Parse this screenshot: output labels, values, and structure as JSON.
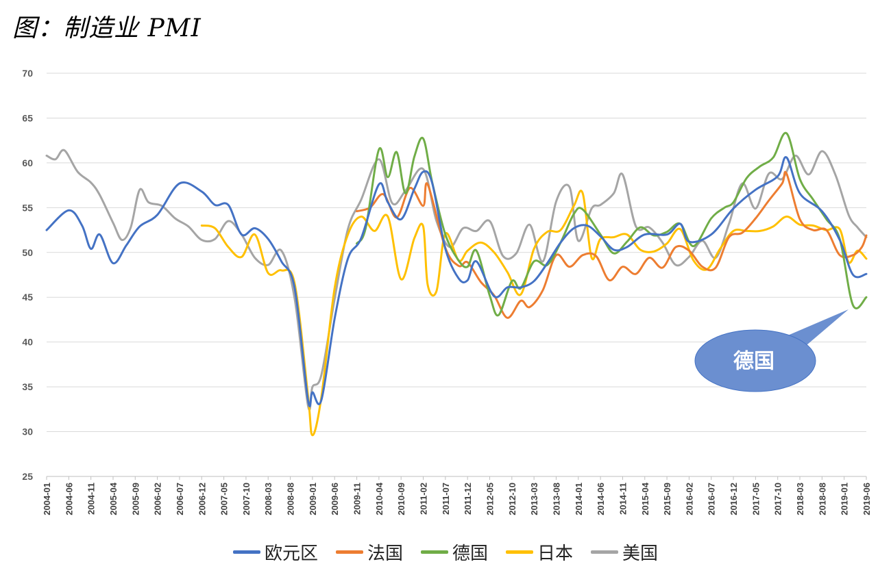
{
  "title": "图：制造业 PMI",
  "chart_data": {
    "type": "line",
    "title": "图：制造业 PMI",
    "ylim": [
      25,
      70
    ],
    "yticks": [
      25,
      30,
      35,
      40,
      45,
      50,
      55,
      60,
      65,
      70
    ],
    "grid": "horizontal",
    "legend_position": "bottom",
    "xtick_labels": [
      "2004-01",
      "2004-06",
      "2004-11",
      "2005-04",
      "2005-09",
      "2006-02",
      "2006-07",
      "2006-12",
      "2007-05",
      "2007-10",
      "2008-03",
      "2008-08",
      "2009-01",
      "2009-06",
      "2009-11",
      "2010-04",
      "2010-09",
      "2011-02",
      "2011-07",
      "2011-12",
      "2012-05",
      "2012-10",
      "2013-03",
      "2013-08",
      "2014-01",
      "2014-06",
      "2014-11",
      "2015-04",
      "2015-09",
      "2016-02",
      "2016-07",
      "2016-12",
      "2017-05",
      "2017-10",
      "2018-03",
      "2018-08",
      "2019-01",
      "2019-06"
    ],
    "series": [
      {
        "name": "欧元区",
        "color": "#4472C4",
        "start": "2004-01",
        "knots": [
          [
            "2004-01",
            52.5
          ],
          [
            "2004-06",
            54.7
          ],
          [
            "2004-09",
            53.0
          ],
          [
            "2004-11",
            50.4
          ],
          [
            "2005-01",
            52.0
          ],
          [
            "2005-04",
            48.8
          ],
          [
            "2005-07",
            50.8
          ],
          [
            "2005-10",
            52.9
          ],
          [
            "2006-02",
            54.2
          ],
          [
            "2006-07",
            57.7
          ],
          [
            "2006-12",
            56.8
          ],
          [
            "2007-03",
            55.3
          ],
          [
            "2007-06",
            55.3
          ],
          [
            "2007-09",
            52.0
          ],
          [
            "2007-12",
            52.7
          ],
          [
            "2008-03",
            51.5
          ],
          [
            "2008-06",
            49.0
          ],
          [
            "2008-09",
            46.0
          ],
          [
            "2008-12",
            33.5
          ],
          [
            "2009-01",
            34.4
          ],
          [
            "2009-03",
            33.5
          ],
          [
            "2009-06",
            42.6
          ],
          [
            "2009-09",
            49.3
          ],
          [
            "2009-12",
            51.6
          ],
          [
            "2010-04",
            57.6
          ],
          [
            "2010-06",
            55.6
          ],
          [
            "2010-09",
            53.7
          ],
          [
            "2010-12",
            57.1
          ],
          [
            "2011-02",
            59.0
          ],
          [
            "2011-04",
            57.8
          ],
          [
            "2011-07",
            50.4
          ],
          [
            "2011-10",
            47.1
          ],
          [
            "2011-12",
            46.9
          ],
          [
            "2012-02",
            49.0
          ],
          [
            "2012-06",
            45.1
          ],
          [
            "2012-09",
            46.1
          ],
          [
            "2012-12",
            46.1
          ],
          [
            "2013-03",
            46.8
          ],
          [
            "2013-06",
            48.8
          ],
          [
            "2013-09",
            51.1
          ],
          [
            "2013-12",
            52.7
          ],
          [
            "2014-03",
            53.0
          ],
          [
            "2014-06",
            51.8
          ],
          [
            "2014-09",
            50.3
          ],
          [
            "2014-12",
            50.6
          ],
          [
            "2015-04",
            52.0
          ],
          [
            "2015-09",
            52.0
          ],
          [
            "2015-12",
            53.2
          ],
          [
            "2016-02",
            51.2
          ],
          [
            "2016-07",
            52.0
          ],
          [
            "2016-12",
            54.9
          ],
          [
            "2017-05",
            57.0
          ],
          [
            "2017-10",
            58.5
          ],
          [
            "2017-12",
            60.6
          ],
          [
            "2018-03",
            56.6
          ],
          [
            "2018-08",
            54.6
          ],
          [
            "2018-12",
            51.4
          ],
          [
            "2019-03",
            47.5
          ],
          [
            "2019-06",
            47.6
          ]
        ]
      },
      {
        "name": "法国",
        "color": "#ED7D31",
        "start": "2009-11",
        "knots": [
          [
            "2009-11",
            54.6
          ],
          [
            "2010-02",
            55.0
          ],
          [
            "2010-05",
            56.5
          ],
          [
            "2010-08",
            53.9
          ],
          [
            "2010-11",
            57.2
          ],
          [
            "2011-02",
            55.2
          ],
          [
            "2011-03",
            57.6
          ],
          [
            "2011-07",
            50.5
          ],
          [
            "2011-10",
            48.5
          ],
          [
            "2011-12",
            48.9
          ],
          [
            "2012-03",
            46.7
          ],
          [
            "2012-06",
            45.2
          ],
          [
            "2012-09",
            42.7
          ],
          [
            "2012-12",
            44.6
          ],
          [
            "2013-02",
            43.9
          ],
          [
            "2013-05",
            45.8
          ],
          [
            "2013-08",
            49.7
          ],
          [
            "2013-11",
            48.4
          ],
          [
            "2014-02",
            49.7
          ],
          [
            "2014-05",
            49.6
          ],
          [
            "2014-08",
            46.9
          ],
          [
            "2014-11",
            48.4
          ],
          [
            "2015-02",
            47.6
          ],
          [
            "2015-05",
            49.4
          ],
          [
            "2015-08",
            48.3
          ],
          [
            "2015-11",
            50.6
          ],
          [
            "2016-02",
            50.2
          ],
          [
            "2016-05",
            48.4
          ],
          [
            "2016-08",
            48.3
          ],
          [
            "2016-11",
            51.7
          ],
          [
            "2017-02",
            52.2
          ],
          [
            "2017-05",
            53.8
          ],
          [
            "2017-08",
            55.8
          ],
          [
            "2017-11",
            57.7
          ],
          [
            "2017-12",
            58.8
          ],
          [
            "2018-03",
            53.7
          ],
          [
            "2018-06",
            52.5
          ],
          [
            "2018-09",
            52.5
          ],
          [
            "2018-12",
            49.7
          ],
          [
            "2019-03",
            49.7
          ],
          [
            "2019-05",
            50.6
          ],
          [
            "2019-06",
            51.9
          ]
        ]
      },
      {
        "name": "德国",
        "color": "#70AD47",
        "start": "2009-11",
        "knots": [
          [
            "2009-11",
            51.0
          ],
          [
            "2010-01",
            52.7
          ],
          [
            "2010-04",
            61.5
          ],
          [
            "2010-06",
            58.4
          ],
          [
            "2010-08",
            61.2
          ],
          [
            "2010-10",
            56.6
          ],
          [
            "2010-12",
            60.7
          ],
          [
            "2011-02",
            62.7
          ],
          [
            "2011-04",
            57.9
          ],
          [
            "2011-07",
            52.0
          ],
          [
            "2011-10",
            49.1
          ],
          [
            "2011-12",
            48.4
          ],
          [
            "2012-02",
            50.2
          ],
          [
            "2012-05",
            45.2
          ],
          [
            "2012-07",
            43.0
          ],
          [
            "2012-10",
            46.8
          ],
          [
            "2012-12",
            46.0
          ],
          [
            "2013-03",
            49.0
          ],
          [
            "2013-06",
            48.6
          ],
          [
            "2013-09",
            51.1
          ],
          [
            "2013-12",
            54.3
          ],
          [
            "2014-02",
            54.8
          ],
          [
            "2014-06",
            52.0
          ],
          [
            "2014-09",
            49.9
          ],
          [
            "2014-12",
            51.2
          ],
          [
            "2015-03",
            52.8
          ],
          [
            "2015-06",
            51.9
          ],
          [
            "2015-09",
            52.3
          ],
          [
            "2015-12",
            53.2
          ],
          [
            "2016-03",
            50.7
          ],
          [
            "2016-07",
            53.8
          ],
          [
            "2016-10",
            55.0
          ],
          [
            "2016-12",
            55.6
          ],
          [
            "2017-03",
            58.3
          ],
          [
            "2017-06",
            59.6
          ],
          [
            "2017-09",
            60.6
          ],
          [
            "2017-12",
            63.3
          ],
          [
            "2018-03",
            58.2
          ],
          [
            "2018-06",
            55.9
          ],
          [
            "2018-09",
            53.7
          ],
          [
            "2018-12",
            51.5
          ],
          [
            "2019-03",
            44.1
          ],
          [
            "2019-06",
            45.0
          ]
        ]
      },
      {
        "name": "日本",
        "color": "#FFC000",
        "start": "2006-12",
        "knots": [
          [
            "2006-12",
            53.0
          ],
          [
            "2007-03",
            52.7
          ],
          [
            "2007-06",
            50.6
          ],
          [
            "2007-09",
            49.5
          ],
          [
            "2007-12",
            52.0
          ],
          [
            "2008-03",
            47.7
          ],
          [
            "2008-06",
            48.0
          ],
          [
            "2008-09",
            46.5
          ],
          [
            "2008-12",
            34.0
          ],
          [
            "2009-01",
            29.6
          ],
          [
            "2009-03",
            33.8
          ],
          [
            "2009-06",
            46.0
          ],
          [
            "2009-09",
            52.0
          ],
          [
            "2009-12",
            54.0
          ],
          [
            "2010-03",
            52.4
          ],
          [
            "2010-06",
            54.0
          ],
          [
            "2010-09",
            47.0
          ],
          [
            "2010-12",
            51.6
          ],
          [
            "2011-02",
            52.9
          ],
          [
            "2011-03",
            46.4
          ],
          [
            "2011-05",
            45.7
          ],
          [
            "2011-07",
            52.1
          ],
          [
            "2011-10",
            49.1
          ],
          [
            "2011-12",
            50.2
          ],
          [
            "2012-03",
            51.1
          ],
          [
            "2012-06",
            50.0
          ],
          [
            "2012-09",
            47.8
          ],
          [
            "2012-12",
            45.3
          ],
          [
            "2013-03",
            50.4
          ],
          [
            "2013-06",
            52.3
          ],
          [
            "2013-09",
            52.5
          ],
          [
            "2013-12",
            55.2
          ],
          [
            "2014-02",
            56.6
          ],
          [
            "2014-04",
            49.4
          ],
          [
            "2014-06",
            51.5
          ],
          [
            "2014-09",
            51.7
          ],
          [
            "2014-12",
            52.0
          ],
          [
            "2015-03",
            50.3
          ],
          [
            "2015-06",
            50.1
          ],
          [
            "2015-09",
            51.0
          ],
          [
            "2015-12",
            52.6
          ],
          [
            "2016-03",
            49.1
          ],
          [
            "2016-06",
            48.1
          ],
          [
            "2016-09",
            50.4
          ],
          [
            "2016-12",
            52.4
          ],
          [
            "2017-03",
            52.4
          ],
          [
            "2017-06",
            52.4
          ],
          [
            "2017-09",
            52.9
          ],
          [
            "2017-12",
            54.0
          ],
          [
            "2018-03",
            53.1
          ],
          [
            "2018-06",
            53.0
          ],
          [
            "2018-09",
            52.5
          ],
          [
            "2018-12",
            52.6
          ],
          [
            "2019-02",
            48.9
          ],
          [
            "2019-04",
            50.2
          ],
          [
            "2019-06",
            49.3
          ]
        ]
      },
      {
        "name": "美国",
        "color": "#A5A5A5",
        "start": "2004-01",
        "knots": [
          [
            "2004-01",
            60.8
          ],
          [
            "2004-03",
            60.4
          ],
          [
            "2004-05",
            61.4
          ],
          [
            "2004-08",
            59.0
          ],
          [
            "2004-11",
            57.8
          ],
          [
            "2005-01",
            56.4
          ],
          [
            "2005-04",
            53.3
          ],
          [
            "2005-06",
            51.4
          ],
          [
            "2005-08",
            52.8
          ],
          [
            "2005-10",
            57.0
          ],
          [
            "2005-12",
            55.6
          ],
          [
            "2006-03",
            55.2
          ],
          [
            "2006-06",
            53.8
          ],
          [
            "2006-09",
            52.9
          ],
          [
            "2006-12",
            51.4
          ],
          [
            "2007-03",
            51.5
          ],
          [
            "2007-06",
            53.5
          ],
          [
            "2007-09",
            52.0
          ],
          [
            "2007-12",
            49.4
          ],
          [
            "2008-03",
            48.6
          ],
          [
            "2008-06",
            50.2
          ],
          [
            "2008-09",
            44.8
          ],
          [
            "2008-12",
            32.9
          ],
          [
            "2009-01",
            35.0
          ],
          [
            "2009-03",
            36.3
          ],
          [
            "2009-06",
            44.8
          ],
          [
            "2009-09",
            52.6
          ],
          [
            "2009-12",
            55.9
          ],
          [
            "2010-04",
            60.4
          ],
          [
            "2010-07",
            55.5
          ],
          [
            "2010-10",
            56.9
          ],
          [
            "2011-02",
            59.3
          ],
          [
            "2011-05",
            53.5
          ],
          [
            "2011-08",
            50.6
          ],
          [
            "2011-11",
            52.7
          ],
          [
            "2012-02",
            52.4
          ],
          [
            "2012-05",
            53.5
          ],
          [
            "2012-08",
            49.6
          ],
          [
            "2012-11",
            49.9
          ],
          [
            "2013-02",
            53.1
          ],
          [
            "2013-05",
            49.0
          ],
          [
            "2013-08",
            55.7
          ],
          [
            "2013-11",
            57.3
          ],
          [
            "2014-01",
            51.3
          ],
          [
            "2014-04",
            54.9
          ],
          [
            "2014-06",
            55.3
          ],
          [
            "2014-09",
            56.6
          ],
          [
            "2014-11",
            58.7
          ],
          [
            "2015-02",
            52.9
          ],
          [
            "2015-05",
            52.8
          ],
          [
            "2015-08",
            51.1
          ],
          [
            "2015-11",
            48.6
          ],
          [
            "2016-02",
            49.5
          ],
          [
            "2016-05",
            51.3
          ],
          [
            "2016-08",
            49.4
          ],
          [
            "2016-11",
            53.2
          ],
          [
            "2017-02",
            57.7
          ],
          [
            "2017-05",
            54.9
          ],
          [
            "2017-08",
            58.8
          ],
          [
            "2017-11",
            58.2
          ],
          [
            "2018-02",
            60.8
          ],
          [
            "2018-05",
            58.7
          ],
          [
            "2018-08",
            61.3
          ],
          [
            "2018-11",
            58.7
          ],
          [
            "2019-02",
            54.2
          ],
          [
            "2019-04",
            52.8
          ],
          [
            "2019-06",
            51.7
          ]
        ]
      }
    ]
  },
  "callout": {
    "label": "德国",
    "color": "#6B8FD0"
  }
}
